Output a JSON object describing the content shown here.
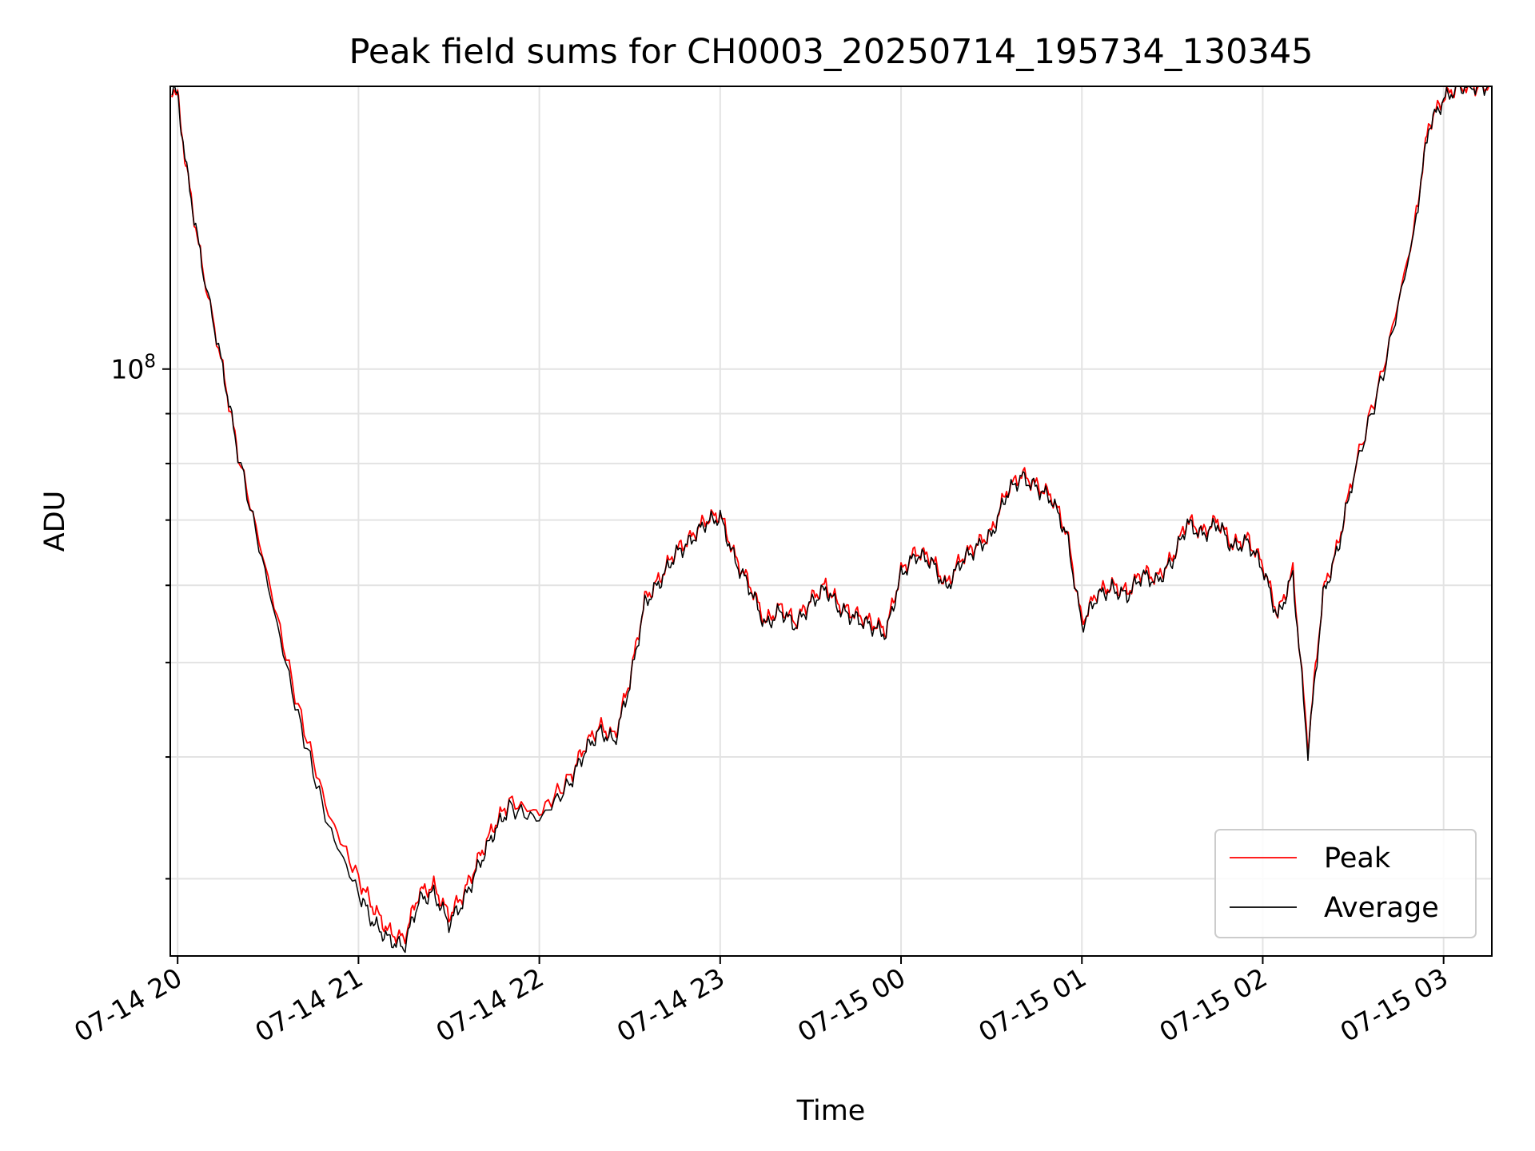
{
  "chart_data": {
    "type": "line",
    "title": "Peak field sums for CH0003_20250714_195734_130345",
    "xlabel": "Time",
    "ylabel": "ADU",
    "yscale": "log",
    "ytick_labels": [
      {
        "base": "10",
        "exp": "8",
        "value": 100000000
      }
    ],
    "xlim": [
      "07-14 19:57:34",
      "07-15 03:16:00"
    ],
    "ylim": [
      25000000,
      195000000
    ],
    "x_ticks": [
      "07-14 20",
      "07-14 21",
      "07-14 22",
      "07-14 23",
      "07-15 00",
      "07-15 01",
      "07-15 02",
      "07-15 03"
    ],
    "grid": true,
    "legend_position": "lower-right",
    "series": [
      {
        "name": "Peak",
        "color": "#ff0000",
        "x": [
          "07-14 19:58",
          "07-14 20:00",
          "07-14 20:03",
          "07-14 20:08",
          "07-14 20:15",
          "07-14 20:20",
          "07-14 20:30",
          "07-14 20:40",
          "07-14 20:50",
          "07-14 21:00",
          "07-14 21:05",
          "07-14 21:10",
          "07-14 21:15",
          "07-14 21:20",
          "07-14 21:25",
          "07-14 21:30",
          "07-14 21:35",
          "07-14 21:40",
          "07-14 21:45",
          "07-14 21:50",
          "07-14 22:00",
          "07-14 22:10",
          "07-14 22:15",
          "07-14 22:20",
          "07-14 22:25",
          "07-14 22:30",
          "07-14 22:35",
          "07-14 22:40",
          "07-14 22:45",
          "07-14 22:50",
          "07-14 22:55",
          "07-14 23:00",
          "07-14 23:05",
          "07-14 23:10",
          "07-14 23:15",
          "07-14 23:20",
          "07-14 23:25",
          "07-14 23:30",
          "07-14 23:35",
          "07-14 23:40",
          "07-14 23:45",
          "07-14 23:50",
          "07-14 23:55",
          "07-15 00:00",
          "07-15 00:05",
          "07-15 00:10",
          "07-15 00:15",
          "07-15 00:20",
          "07-15 00:25",
          "07-15 00:30",
          "07-15 00:35",
          "07-15 00:40",
          "07-15 00:45",
          "07-15 00:50",
          "07-15 00:55",
          "07-15 01:00",
          "07-15 01:05",
          "07-15 01:10",
          "07-15 01:15",
          "07-15 01:20",
          "07-15 01:25",
          "07-15 01:30",
          "07-15 01:35",
          "07-15 01:40",
          "07-15 01:45",
          "07-15 01:50",
          "07-15 01:55",
          "07-15 02:00",
          "07-15 02:05",
          "07-15 02:10",
          "07-15 02:15",
          "07-15 02:20",
          "07-15 02:25",
          "07-15 02:30",
          "07-15 02:40",
          "07-15 02:50",
          "07-15 02:55",
          "07-15 03:00",
          "07-15 03:05",
          "07-15 03:10",
          "07-15 03:15"
        ],
        "y": [
          195000000,
          190000000,
          160000000,
          128000000,
          100000000,
          82000000,
          61000000,
          45000000,
          35000000,
          30000000,
          28000000,
          26500000,
          26000000,
          29000000,
          29500000,
          27500000,
          29000000,
          31500000,
          34000000,
          36000000,
          35000000,
          38000000,
          41000000,
          43000000,
          42000000,
          48000000,
          58000000,
          61000000,
          65000000,
          67000000,
          70000000,
          71000000,
          64000000,
          60000000,
          55000000,
          57000000,
          55000000,
          58000000,
          60000000,
          57000000,
          56000000,
          55000000,
          54000000,
          62000000,
          65000000,
          64000000,
          60000000,
          64000000,
          66000000,
          68000000,
          75000000,
          78000000,
          76000000,
          74000000,
          68000000,
          55000000,
          59000000,
          60000000,
          59000000,
          62000000,
          61000000,
          64000000,
          70000000,
          68000000,
          70000000,
          66000000,
          67000000,
          63000000,
          56000000,
          62000000,
          41000000,
          59000000,
          66000000,
          78000000,
          100000000,
          138000000,
          178000000,
          190000000,
          195000000,
          195000000,
          195000000
        ]
      },
      {
        "name": "Average",
        "color": "#000000",
        "x": [
          "07-14 19:58",
          "07-14 20:00",
          "07-14 20:03",
          "07-14 20:08",
          "07-14 20:15",
          "07-14 20:20",
          "07-14 20:30",
          "07-14 20:40",
          "07-14 20:50",
          "07-14 21:00",
          "07-14 21:05",
          "07-14 21:10",
          "07-14 21:15",
          "07-14 21:20",
          "07-14 21:25",
          "07-14 21:30",
          "07-14 21:35",
          "07-14 21:40",
          "07-14 21:45",
          "07-14 21:50",
          "07-14 22:00",
          "07-14 22:10",
          "07-14 22:15",
          "07-14 22:20",
          "07-14 22:25",
          "07-14 22:30",
          "07-14 22:35",
          "07-14 22:40",
          "07-14 22:45",
          "07-14 22:50",
          "07-14 22:55",
          "07-14 23:00",
          "07-14 23:05",
          "07-14 23:10",
          "07-14 23:15",
          "07-14 23:20",
          "07-14 23:25",
          "07-14 23:30",
          "07-14 23:35",
          "07-14 23:40",
          "07-14 23:45",
          "07-14 23:50",
          "07-14 23:55",
          "07-15 00:00",
          "07-15 00:05",
          "07-15 00:10",
          "07-15 00:15",
          "07-15 00:20",
          "07-15 00:25",
          "07-15 00:30",
          "07-15 00:35",
          "07-15 00:40",
          "07-15 00:45",
          "07-15 00:50",
          "07-15 00:55",
          "07-15 01:00",
          "07-15 01:05",
          "07-15 01:10",
          "07-15 01:15",
          "07-15 01:20",
          "07-15 01:25",
          "07-15 01:30",
          "07-15 01:35",
          "07-15 01:40",
          "07-15 01:45",
          "07-15 01:50",
          "07-15 01:55",
          "07-15 02:00",
          "07-15 02:05",
          "07-15 02:10",
          "07-15 02:15",
          "07-15 02:20",
          "07-15 02:25",
          "07-15 02:30",
          "07-15 02:40",
          "07-15 02:50",
          "07-15 02:55",
          "07-15 03:00",
          "07-15 03:05",
          "07-15 03:10",
          "07-15 03:15"
        ],
        "y": [
          195000000,
          190000000,
          160000000,
          128000000,
          100000000,
          82000000,
          60000000,
          44000000,
          34000000,
          29000000,
          27000000,
          26000000,
          25500000,
          28500000,
          29000000,
          27000000,
          28500000,
          31000000,
          33500000,
          35500000,
          34500000,
          37500000,
          40500000,
          42500000,
          41500000,
          47500000,
          57500000,
          60500000,
          64500000,
          66500000,
          69500000,
          70500000,
          63500000,
          59500000,
          54500000,
          56500000,
          54500000,
          57500000,
          59500000,
          56500000,
          55500000,
          54500000,
          53500000,
          61500000,
          64500000,
          63500000,
          59500000,
          63500000,
          65500000,
          67500000,
          74500000,
          77500000,
          75500000,
          73500000,
          67500000,
          54500000,
          58500000,
          59500000,
          58500000,
          61500000,
          60500000,
          63500000,
          69500000,
          67500000,
          69500000,
          65500000,
          66500000,
          62500000,
          55500000,
          61500000,
          40500000,
          58500000,
          65500000,
          77500000,
          99000000,
          137000000,
          177000000,
          189000000,
          195000000,
          195000000,
          195000000
        ]
      }
    ]
  }
}
